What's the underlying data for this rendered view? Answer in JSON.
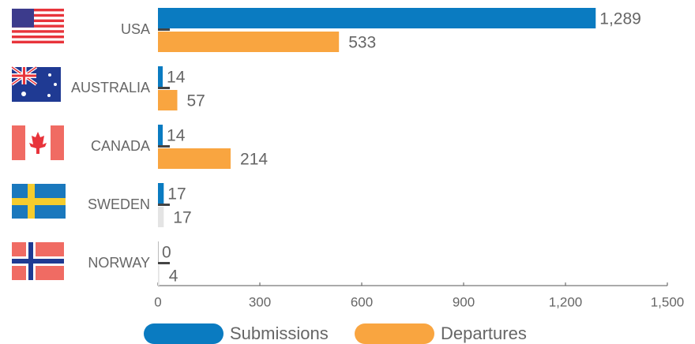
{
  "chart_data": {
    "type": "bar",
    "orientation": "horizontal",
    "categories": [
      "USA",
      "AUSTRALIA",
      "CANADA",
      "SWEDEN",
      "NORWAY"
    ],
    "series": [
      {
        "name": "Submissions",
        "color": "#0a7bc1",
        "values": [
          1289,
          14,
          14,
          17,
          0
        ],
        "value_labels": [
          "1,289",
          "14",
          "14",
          "17",
          "0"
        ]
      },
      {
        "name": "Departures",
        "color": "#f9a540",
        "colors": [
          "#f9a540",
          "#f9a540",
          "#f9a540",
          "#e4e4e4",
          "#e4e4e4"
        ],
        "values": [
          533,
          57,
          214,
          17,
          4
        ]
      }
    ],
    "xlim": [
      0,
      1500
    ],
    "xticks": [
      0,
      300,
      600,
      900,
      {
        "value": 1200,
        "label": "1,200"
      },
      {
        "value": 1500,
        "label": "1,500"
      }
    ]
  }
}
